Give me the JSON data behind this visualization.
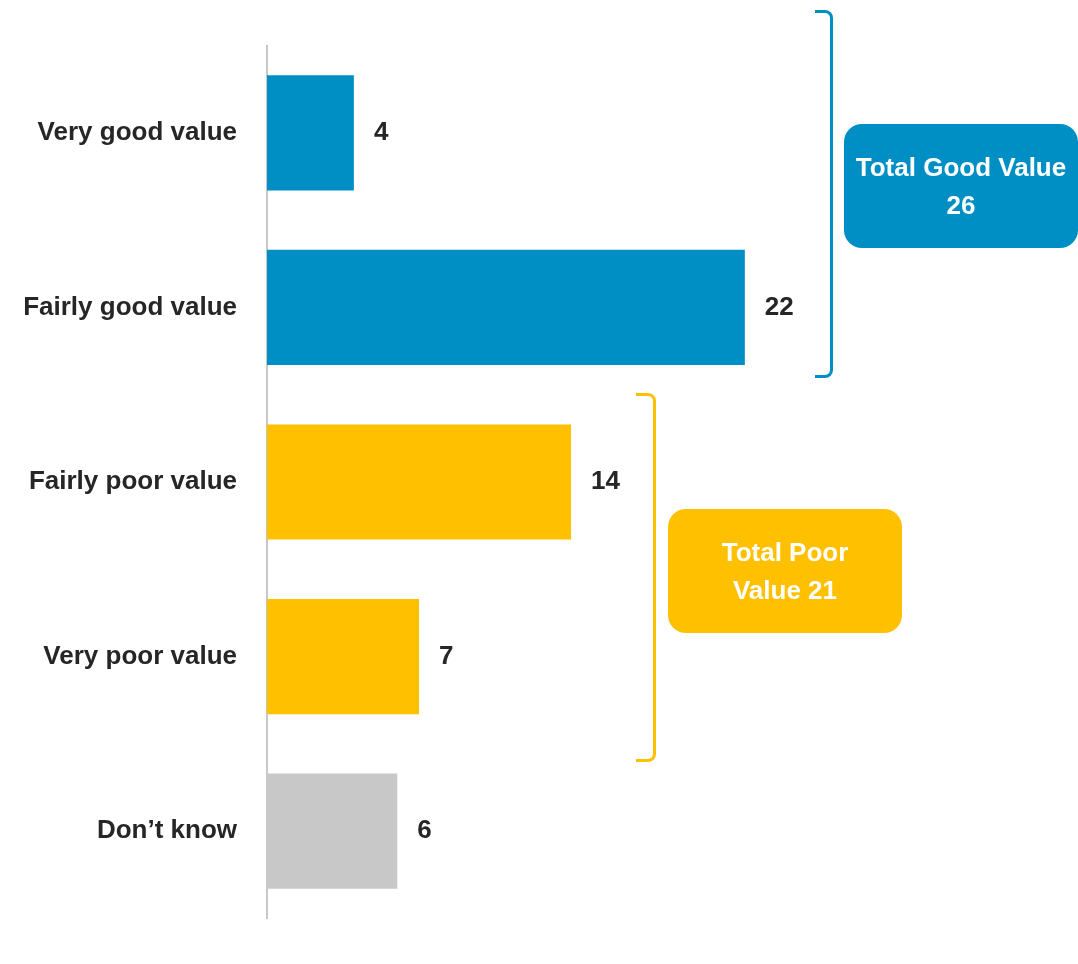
{
  "chart_data": {
    "type": "bar",
    "orientation": "horizontal",
    "categories": [
      "Very good value",
      "Fairly good value",
      "Fairly poor value",
      "Very poor value",
      "Don’t know"
    ],
    "values": [
      4,
      22,
      14,
      7,
      6
    ],
    "colors": [
      "#008fc5",
      "#008fc5",
      "#ffc000",
      "#ffc000",
      "#c8c8c8"
    ],
    "data_labels": true,
    "legend": false,
    "annotations": [
      "Total Good Value 26",
      "Total Poor Value 21"
    ]
  }
}
